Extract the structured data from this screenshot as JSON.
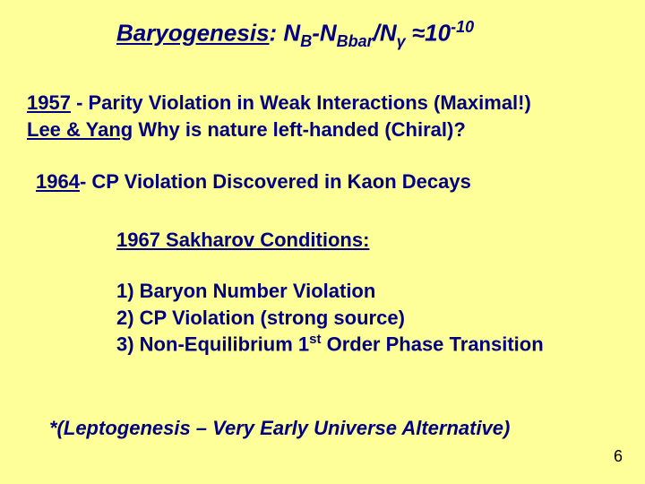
{
  "title": {
    "label": "Baryogenesis",
    "formula_prefix": ": N",
    "sub_B": "B",
    "dash": "-N",
    "sub_Bbar": "Bbar",
    "slash": "/N",
    "sub_gamma": "γ",
    "approx": " ≈",
    "ten": "10",
    "exp": "-10"
  },
  "line1957": {
    "year": "1957",
    "rest1": " - Parity Violation in Weak Interactions (Maximal!)",
    "lee_yang": "Lee & Yang",
    "rest2": "  Why is nature left-handed (Chiral)?"
  },
  "line1964": {
    "year": "1964",
    "rest": "- CP Violation Discovered in Kaon Decays"
  },
  "sakharov_heading": "1967 Sakharov Conditions:",
  "conditions": {
    "c1": "1) Baryon Number Violation",
    "c2": "2) CP Violation (strong source)",
    "c3a": "3) Non-Equilibrium 1",
    "c3_sup": "st",
    "c3b": " Order Phase Transition"
  },
  "footnote": "*(Leptogenesis – Very Early Universe Alternative)",
  "pagenum": "6",
  "colors": {
    "background": "#ffff99",
    "text": "#000080",
    "pagenum": "#000000"
  }
}
